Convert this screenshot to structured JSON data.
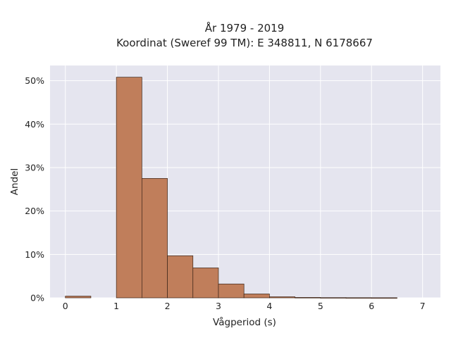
{
  "chart_data": {
    "type": "bar",
    "title_lines": [
      "År 1979 - 2019",
      "Koordinat (Sweref 99 TM): E 348811, N 6178667"
    ],
    "xlabel": "Vågperiod (s)",
    "ylabel": "Andel",
    "bins": [
      {
        "x0": 0.0,
        "x1": 0.5,
        "value": 0.004
      },
      {
        "x0": 0.5,
        "x1": 1.0,
        "value": 0.0
      },
      {
        "x0": 1.0,
        "x1": 1.5,
        "value": 0.508
      },
      {
        "x0": 1.5,
        "x1": 2.0,
        "value": 0.275
      },
      {
        "x0": 2.0,
        "x1": 2.5,
        "value": 0.097
      },
      {
        "x0": 2.5,
        "x1": 3.0,
        "value": 0.069
      },
      {
        "x0": 3.0,
        "x1": 3.5,
        "value": 0.032
      },
      {
        "x0": 3.5,
        "x1": 4.0,
        "value": 0.009
      },
      {
        "x0": 4.0,
        "x1": 4.5,
        "value": 0.0025
      },
      {
        "x0": 4.5,
        "x1": 5.0,
        "value": 0.001
      },
      {
        "x0": 5.0,
        "x1": 5.5,
        "value": 0.0006
      },
      {
        "x0": 5.5,
        "x1": 6.0,
        "value": 0.0004
      },
      {
        "x0": 6.0,
        "x1": 6.5,
        "value": 0.0003
      }
    ],
    "xlim": [
      -0.3,
      7.35
    ],
    "ylim": [
      0,
      0.535
    ],
    "xticks": [
      {
        "value": 0,
        "label": "0"
      },
      {
        "value": 1,
        "label": "1"
      },
      {
        "value": 2,
        "label": "2"
      },
      {
        "value": 3,
        "label": "3"
      },
      {
        "value": 4,
        "label": "4"
      },
      {
        "value": 5,
        "label": "5"
      },
      {
        "value": 6,
        "label": "6"
      },
      {
        "value": 7,
        "label": "7"
      }
    ],
    "yticks": [
      {
        "value": 0,
        "label": "0%"
      },
      {
        "value": 0.1,
        "label": "10%"
      },
      {
        "value": 0.2,
        "label": "20%"
      },
      {
        "value": 0.3,
        "label": "30%"
      },
      {
        "value": 0.4,
        "label": "40%"
      },
      {
        "value": 0.5,
        "label": "50%"
      }
    ],
    "grid": true,
    "colors": {
      "bar_fill": "#c07e5b",
      "bar_edge": "#3a2418",
      "plot_bg": "#e5e5ef",
      "grid": "#ffffff"
    }
  }
}
